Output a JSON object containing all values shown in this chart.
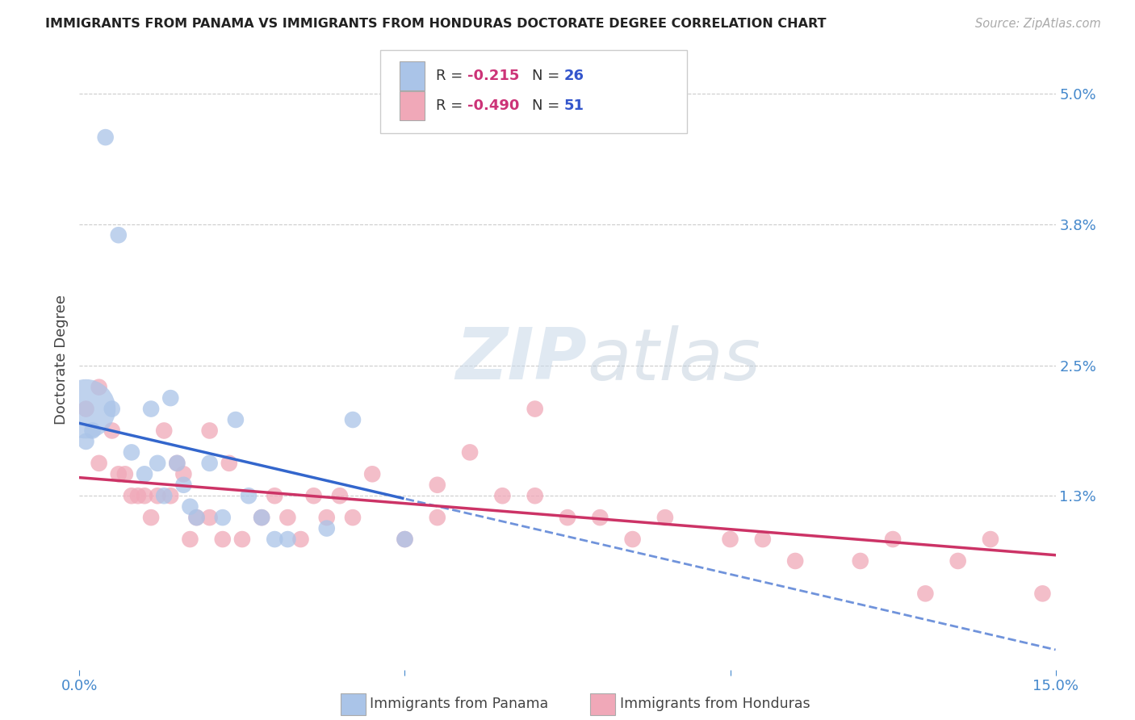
{
  "title": "IMMIGRANTS FROM PANAMA VS IMMIGRANTS FROM HONDURAS DOCTORATE DEGREE CORRELATION CHART",
  "source": "Source: ZipAtlas.com",
  "xlabel_panama": "Immigrants from Panama",
  "xlabel_honduras": "Immigrants from Honduras",
  "ylabel": "Doctorate Degree",
  "xlim": [
    0.0,
    0.15
  ],
  "ylim": [
    -0.003,
    0.054
  ],
  "r_panama": -0.215,
  "n_panama": 26,
  "r_honduras": -0.49,
  "n_honduras": 51,
  "color_panama": "#aac4e8",
  "color_honduras": "#f0a8b8",
  "color_line_panama": "#3366cc",
  "color_line_honduras": "#cc3366",
  "background": "#ffffff",
  "watermark_zip": "ZIP",
  "watermark_atlas": "atlas",
  "panama_x": [
    0.001,
    0.004,
    0.006,
    0.008,
    0.01,
    0.011,
    0.012,
    0.013,
    0.014,
    0.015,
    0.016,
    0.017,
    0.018,
    0.02,
    0.022,
    0.024,
    0.026,
    0.028,
    0.03,
    0.032,
    0.038,
    0.042,
    0.05,
    0.002,
    0.005,
    0.001
  ],
  "panama_y": [
    0.018,
    0.046,
    0.037,
    0.017,
    0.015,
    0.021,
    0.016,
    0.013,
    0.022,
    0.016,
    0.014,
    0.012,
    0.011,
    0.016,
    0.011,
    0.02,
    0.013,
    0.011,
    0.009,
    0.009,
    0.01,
    0.02,
    0.009,
    0.019,
    0.021,
    0.021
  ],
  "panama_size_large": [
    false,
    false,
    false,
    false,
    false,
    false,
    false,
    false,
    false,
    false,
    false,
    false,
    false,
    false,
    false,
    false,
    false,
    false,
    false,
    false,
    false,
    false,
    false,
    false,
    false,
    true
  ],
  "honduras_x": [
    0.001,
    0.003,
    0.005,
    0.006,
    0.007,
    0.008,
    0.009,
    0.01,
    0.011,
    0.012,
    0.013,
    0.014,
    0.015,
    0.016,
    0.017,
    0.018,
    0.02,
    0.022,
    0.023,
    0.025,
    0.028,
    0.03,
    0.032,
    0.034,
    0.036,
    0.038,
    0.04,
    0.042,
    0.045,
    0.05,
    0.055,
    0.06,
    0.065,
    0.07,
    0.075,
    0.08,
    0.085,
    0.09,
    0.1,
    0.105,
    0.11,
    0.12,
    0.125,
    0.13,
    0.135,
    0.14,
    0.003,
    0.02,
    0.055,
    0.07,
    0.148
  ],
  "honduras_y": [
    0.021,
    0.016,
    0.019,
    0.015,
    0.015,
    0.013,
    0.013,
    0.013,
    0.011,
    0.013,
    0.019,
    0.013,
    0.016,
    0.015,
    0.009,
    0.011,
    0.011,
    0.009,
    0.016,
    0.009,
    0.011,
    0.013,
    0.011,
    0.009,
    0.013,
    0.011,
    0.013,
    0.011,
    0.015,
    0.009,
    0.011,
    0.017,
    0.013,
    0.013,
    0.011,
    0.011,
    0.009,
    0.011,
    0.009,
    0.009,
    0.007,
    0.007,
    0.009,
    0.004,
    0.007,
    0.009,
    0.023,
    0.019,
    0.014,
    0.021,
    0.004
  ]
}
